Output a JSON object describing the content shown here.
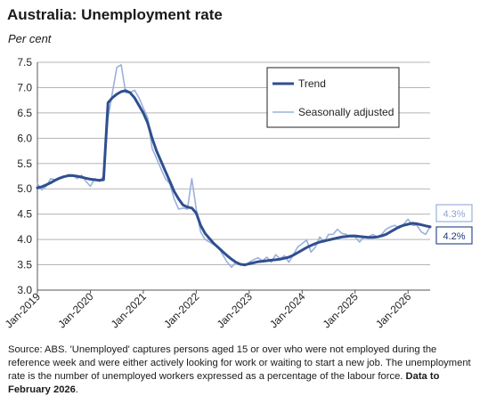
{
  "chart_data": {
    "type": "line",
    "title": "Australia: Unemployment rate",
    "subtitle": "Per cent",
    "ylim": [
      3.0,
      7.5
    ],
    "yticks": [
      "3.0",
      "3.5",
      "4.0",
      "4.5",
      "5.0",
      "5.5",
      "6.0",
      "6.5",
      "7.0",
      "7.5"
    ],
    "xticks": [
      "Jan-2019",
      "Jan-2020",
      "Jan-2021",
      "Jan-2022",
      "Jan-2023",
      "Jan-2024",
      "Jan-2025",
      "Jan-2026"
    ],
    "x_start": "Jan-2019",
    "x_end": "Feb-2026",
    "grid": true,
    "legend_position": "top-right",
    "series": [
      {
        "name": "Trend",
        "color": "#2f4f8f",
        "values": [
          5.02,
          5.04,
          5.08,
          5.12,
          5.17,
          5.21,
          5.24,
          5.26,
          5.26,
          5.25,
          5.23,
          5.21,
          5.19,
          5.18,
          5.17,
          5.18,
          6.7,
          6.8,
          6.87,
          6.92,
          6.94,
          6.9,
          6.8,
          6.65,
          6.5,
          6.3,
          6.0,
          5.75,
          5.55,
          5.35,
          5.15,
          4.95,
          4.8,
          4.68,
          4.64,
          4.62,
          4.52,
          4.28,
          4.12,
          4.02,
          3.92,
          3.84,
          3.76,
          3.68,
          3.61,
          3.55,
          3.51,
          3.5,
          3.52,
          3.54,
          3.56,
          3.57,
          3.58,
          3.59,
          3.6,
          3.61,
          3.63,
          3.65,
          3.69,
          3.74,
          3.79,
          3.84,
          3.88,
          3.92,
          3.95,
          3.97,
          3.99,
          4.01,
          4.03,
          4.05,
          4.06,
          4.07,
          4.07,
          4.06,
          4.05,
          4.04,
          4.04,
          4.05,
          4.07,
          4.1,
          4.15,
          4.2,
          4.25,
          4.28,
          4.3,
          4.32,
          4.31,
          4.29,
          4.27,
          4.25
        ]
      },
      {
        "name": "Seasonally adjusted",
        "color": "#9bb0dc",
        "values": [
          5.1,
          4.98,
          5.05,
          5.2,
          5.18,
          5.22,
          5.23,
          5.28,
          5.28,
          5.2,
          5.27,
          5.15,
          5.05,
          5.2,
          5.15,
          5.25,
          6.4,
          6.9,
          7.4,
          7.45,
          6.9,
          6.9,
          6.95,
          6.8,
          6.6,
          6.4,
          5.8,
          5.6,
          5.4,
          5.2,
          5.1,
          4.8,
          4.6,
          4.62,
          4.6,
          5.2,
          4.6,
          4.15,
          4.0,
          3.95,
          3.9,
          3.85,
          3.7,
          3.55,
          3.45,
          3.55,
          3.52,
          3.48,
          3.55,
          3.6,
          3.64,
          3.58,
          3.65,
          3.55,
          3.7,
          3.62,
          3.68,
          3.55,
          3.7,
          3.85,
          3.92,
          3.99,
          3.75,
          3.85,
          4.05,
          3.95,
          4.1,
          4.1,
          4.2,
          4.12,
          4.1,
          4.05,
          4.05,
          3.95,
          4.05,
          4.05,
          4.1,
          4.05,
          4.1,
          4.2,
          4.25,
          4.28,
          4.22,
          4.3,
          4.4,
          4.28,
          4.28,
          4.15,
          4.1,
          4.25
        ]
      }
    ],
    "end_labels": [
      {
        "series": "Seasonally adjusted",
        "text": "4.3%",
        "color": "#9bb0dc"
      },
      {
        "series": "Trend",
        "text": "4.2%",
        "color": "#2f4f8f"
      }
    ]
  },
  "note": {
    "text": "Source: ABS. 'Unemployed' captures persons aged 15 or over who were not employed during the reference week and were either actively looking for work or waiting to start a new job. The unemployment rate is the number of unemployed workers expressed as a percentage of the labour force.",
    "bold_text": "Data to February 2026"
  }
}
